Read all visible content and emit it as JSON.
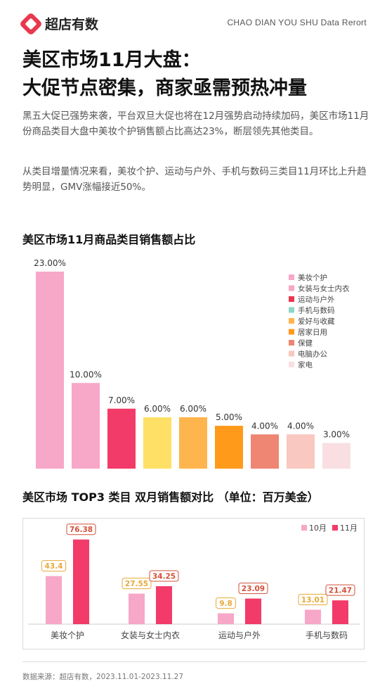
{
  "header": {
    "logo_icon": "diamond-logo-icon",
    "logo_text": "超店有数",
    "brand_en": "CHAO DIAN YOU SHU Data Rerort"
  },
  "title": {
    "line1": "美区市场11月大盘：",
    "line2": "大促节点密集，商家亟需预热冲量"
  },
  "paragraphs": [
    "黑五大促已强势来袭，平台双旦大促也将在12月强势启动持续加码，美区市场11月份商品类目大盘中美妆个护销售额占比高达23%，断层领先其他类目。",
    "从类目增量情况来看，美妆个护、运动与户外、手机与数码三类目11月环比上升趋势明显，GMV涨幅接近50%。"
  ],
  "chart_data": [
    {
      "type": "bar",
      "title": "美区市场11月商品类目销售额占比",
      "categories": [
        "美妆个护",
        "女装与女士内衣",
        "运动与户外",
        "手机与数码",
        "爱好与收藏",
        "居家日用",
        "保健",
        "电脑办公",
        "家电"
      ],
      "values": [
        23,
        10,
        7,
        6,
        6,
        5,
        4,
        4,
        3
      ],
      "value_labels": [
        "23.00%",
        "10.00%",
        "7.00%",
        "6.00%",
        "6.00%",
        "5.00%",
        "4.00%",
        "4.00%",
        "3.00%"
      ],
      "colors": [
        "#f7a7c8",
        "#f7a7c8",
        "#f23b68",
        "#ffe066",
        "#ffb54d",
        "#ff9a1a",
        "#ee8673",
        "#f9c8c0",
        "#f9dfe2"
      ],
      "legend": [
        {
          "name": "美妆个护",
          "color": "#f7a7c8"
        },
        {
          "name": "女装与女士内衣",
          "color": "#f7a7c8"
        },
        {
          "name": "运动与户外",
          "color": "#e8384f"
        },
        {
          "name": "手机与数码",
          "color": "#8ed7c6"
        },
        {
          "name": "爱好与收藏",
          "color": "#ffb54d"
        },
        {
          "name": "居家日用",
          "color": "#ff9a1a"
        },
        {
          "name": "保健",
          "color": "#ee8673"
        },
        {
          "name": "电脑办公",
          "color": "#f9c8c0"
        },
        {
          "name": "家电",
          "color": "#f9dfe2"
        }
      ],
      "legend_position": "right",
      "ylim": [
        0,
        23
      ]
    },
    {
      "type": "bar",
      "title": "美区市场  TOP3 类目  双月销售额对比  （单位：百万美金）",
      "categories": [
        "美妆个护",
        "女装与女士内衣",
        "运动与户外",
        "手机与数码"
      ],
      "series": [
        {
          "name": "10月",
          "values": [
            43.4,
            27.55,
            9.8,
            13.01
          ],
          "labels": [
            "43.4",
            "27.55",
            "9.8",
            "13.01"
          ],
          "color": "#f7a7c8",
          "label_color": "#e8a93a"
        },
        {
          "name": "11月",
          "values": [
            76.38,
            34.25,
            23.09,
            21.47
          ],
          "labels": [
            "76.38",
            "34.25",
            "23.09",
            "21.47"
          ],
          "color": "#f23b68",
          "label_color": "#d2503a"
        }
      ],
      "legend_position": "top-right",
      "ylim": [
        0,
        80
      ]
    }
  ],
  "footer": "数据来源：超店有数，2023.11.01-2023.11.27"
}
